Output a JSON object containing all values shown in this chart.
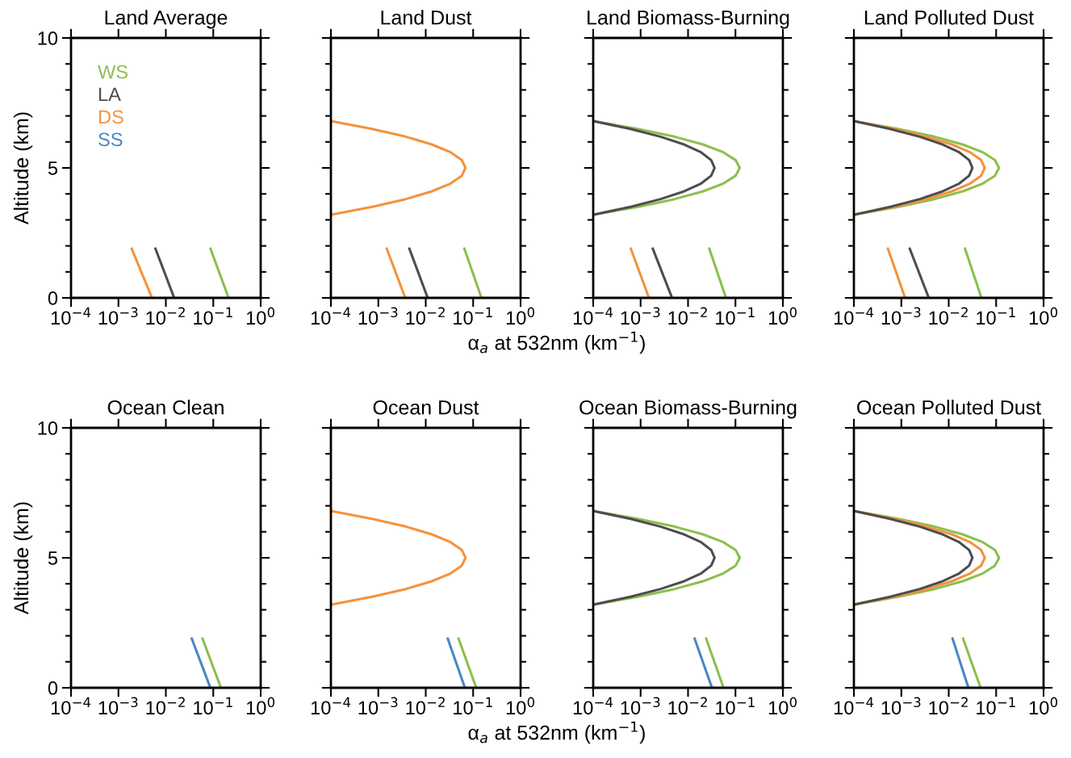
{
  "chart_data": [
    {
      "type": "line",
      "title": "Land Average",
      "ylabel": "Altitude (km)",
      "log": "x",
      "xlim": [
        0.0001,
        1
      ],
      "ylim": [
        0,
        10
      ],
      "legend": "top left",
      "tick_labels": true,
      "xticks": [
        {
          "value": 0.0001,
          "label": "10$^{−4}$"
        },
        {
          "value": 0.001,
          "label": "10$^{−3}$"
        },
        {
          "value": 0.01,
          "label": "10$^{−2}$"
        },
        {
          "value": 0.1,
          "label": "10$^{−1}$"
        },
        {
          "value": 1,
          "label": "10$^{0}$"
        }
      ],
      "yticks": [
        0,
        {
          "value": 1,
          "label": null
        },
        {
          "value": 2,
          "label": null
        },
        {
          "value": 3,
          "label": null
        },
        {
          "value": 4,
          "label": null
        },
        5,
        {
          "value": 6,
          "label": null
        },
        {
          "value": 7,
          "label": null
        },
        {
          "value": 8,
          "label": null
        },
        {
          "value": 9,
          "label": null
        },
        10
      ],
      "series": [
        {
          "name": "WS",
          "color": "#8cbf4f",
          "x": [
            0.21,
            0.087
          ],
          "values": [
            0,
            1.9
          ]
        },
        {
          "name": "LA",
          "color": "#4d4d4d",
          "x": [
            0.015,
            0.006
          ],
          "values": [
            0,
            1.9
          ]
        },
        {
          "name": "DS",
          "color": "#f4923d",
          "x": [
            0.0051,
            0.0019
          ],
          "values": [
            0,
            1.9
          ]
        },
        {
          "name": "SS",
          "color": "#4a86c8"
        }
      ]
    },
    {
      "type": "line",
      "title": "Land Dust",
      "xlabel": "α$_{a}$ at 532nm (km$^{−1}$)",
      "log": "x",
      "xlim": [
        0.0001,
        1
      ],
      "ylim": [
        0,
        10
      ],
      "tick_labels": "x",
      "xticks": [
        {
          "value": 0.0001,
          "label": "10$^{−4}$"
        },
        {
          "value": 0.001,
          "label": "10$^{−3}$"
        },
        {
          "value": 0.01,
          "label": "10$^{−2}$"
        },
        {
          "value": 0.1,
          "label": "10$^{−1}$"
        },
        {
          "value": 1,
          "label": "10$^{0}$"
        }
      ],
      "yticks": [
        0,
        {
          "value": 1,
          "label": null
        },
        {
          "value": 2,
          "label": null
        },
        {
          "value": 3,
          "label": null
        },
        {
          "value": 4,
          "label": null
        },
        5,
        {
          "value": 6,
          "label": null
        },
        {
          "value": 7,
          "label": null
        },
        {
          "value": 8,
          "label": null
        },
        {
          "value": 9,
          "label": null
        },
        10
      ],
      "series": [
        {
          "color": "#8cbf4f",
          "x": [
            0.15,
            0.065
          ],
          "values": [
            0,
            1.9
          ]
        },
        {
          "color": "#4d4d4d",
          "x": [
            0.011,
            0.0045
          ],
          "values": [
            0,
            1.9
          ]
        },
        {
          "color": "#f4923d",
          "x": [
            0.0037,
            0.0015
          ],
          "values": [
            0,
            1.9
          ]
        },
        {
          "color": "#f4923d",
          "x": [
            0.0001,
            0.00074,
            0.0038,
            0.0135,
            0.0335,
            0.0577,
            0.069,
            0.0577,
            0.0335,
            0.0135,
            0.0038,
            0.00074,
            0.0001
          ],
          "values": [
            3.2,
            3.5,
            3.8,
            4.1,
            4.4,
            4.7,
            5,
            5.3,
            5.6,
            5.9,
            6.2,
            6.5,
            6.8
          ]
        }
      ]
    },
    {
      "type": "line",
      "title": "Land Biomass-Burning",
      "log": "x",
      "xlim": [
        0.0001,
        1
      ],
      "ylim": [
        0,
        10
      ],
      "tick_labels": "x",
      "xticks": [
        {
          "value": 0.0001,
          "label": "10$^{−4}$"
        },
        {
          "value": 0.001,
          "label": "10$^{−3}$"
        },
        {
          "value": 0.01,
          "label": "10$^{−2}$"
        },
        {
          "value": 0.1,
          "label": "10$^{−1}$"
        },
        {
          "value": 1,
          "label": "10$^{0}$"
        }
      ],
      "yticks": [
        0,
        {
          "value": 1,
          "label": null
        },
        {
          "value": 2,
          "label": null
        },
        {
          "value": 3,
          "label": null
        },
        {
          "value": 4,
          "label": null
        },
        5,
        {
          "value": 6,
          "label": null
        },
        {
          "value": 7,
          "label": null
        },
        {
          "value": 8,
          "label": null
        },
        {
          "value": 9,
          "label": null
        },
        10
      ],
      "series": [
        {
          "color": "#8cbf4f",
          "x": [
            0.063,
            0.028
          ],
          "values": [
            0,
            1.9
          ]
        },
        {
          "color": "#4d4d4d",
          "x": [
            0.0046,
            0.0018
          ],
          "values": [
            0,
            1.9
          ]
        },
        {
          "color": "#f4923d",
          "x": [
            0.0015,
            0.00062
          ],
          "values": [
            0,
            1.9
          ]
        },
        {
          "color": "#8cbf4f",
          "x": [
            0.0001,
            0.00088,
            0.0052,
            0.0208,
            0.0558,
            0.101,
            0.123,
            0.101,
            0.0558,
            0.0208,
            0.0052,
            0.00088,
            0.0001
          ],
          "values": [
            3.2,
            3.5,
            3.8,
            4.1,
            4.4,
            4.7,
            5,
            5.3,
            5.6,
            5.9,
            6.2,
            6.5,
            6.8
          ]
        },
        {
          "color": "#4d4d4d",
          "x": [
            0.0001,
            0.00061,
            0.00264,
            0.0083,
            0.0189,
            0.0308,
            0.0363,
            0.0308,
            0.0189,
            0.0083,
            0.00264,
            0.00061,
            0.0001
          ],
          "values": [
            3.2,
            3.5,
            3.8,
            4.1,
            4.4,
            4.7,
            5,
            5.3,
            5.6,
            5.9,
            6.2,
            6.5,
            6.8
          ]
        }
      ]
    },
    {
      "type": "line",
      "title": "Land Polluted Dust",
      "log": "x",
      "xlim": [
        0.0001,
        1
      ],
      "ylim": [
        0,
        10
      ],
      "tick_labels": "x",
      "xticks": [
        {
          "value": 0.0001,
          "label": "10$^{−4}$"
        },
        {
          "value": 0.001,
          "label": "10$^{−3}$"
        },
        {
          "value": 0.01,
          "label": "10$^{−2}$"
        },
        {
          "value": 0.1,
          "label": "10$^{−1}$"
        },
        {
          "value": 1,
          "label": "10$^{0}$"
        }
      ],
      "yticks": [
        0,
        {
          "value": 1,
          "label": null
        },
        {
          "value": 2,
          "label": null
        },
        {
          "value": 3,
          "label": null
        },
        {
          "value": 4,
          "label": null
        },
        5,
        {
          "value": 6,
          "label": null
        },
        {
          "value": 7,
          "label": null
        },
        {
          "value": 8,
          "label": null
        },
        {
          "value": 9,
          "label": null
        },
        10
      ],
      "series": [
        {
          "color": "#8cbf4f",
          "x": [
            0.049,
            0.022
          ],
          "values": [
            0,
            1.9
          ]
        },
        {
          "color": "#4d4d4d",
          "x": [
            0.0038,
            0.0015
          ],
          "values": [
            0,
            1.9
          ]
        },
        {
          "color": "#f4923d",
          "x": [
            0.0012,
            0.00052
          ],
          "values": [
            0,
            1.9
          ]
        },
        {
          "color": "#8cbf4f",
          "x": [
            0.0001,
            0.00086,
            0.00502,
            0.0197,
            0.0525,
            0.0944,
            0.115,
            0.0944,
            0.0525,
            0.0197,
            0.00502,
            0.00086,
            0.0001
          ],
          "values": [
            3.2,
            3.5,
            3.8,
            4.1,
            4.4,
            4.7,
            5,
            5.3,
            5.6,
            5.9,
            6.2,
            6.5,
            6.8
          ]
        },
        {
          "color": "#f4923d",
          "x": [
            0.0001,
            0.0007,
            0.00342,
            0.0117,
            0.0284,
            0.0482,
            0.0575,
            0.0482,
            0.0284,
            0.0117,
            0.00342,
            0.0007,
            0.0001
          ],
          "values": [
            3.2,
            3.5,
            3.8,
            4.1,
            4.4,
            4.7,
            5,
            5.3,
            5.6,
            5.9,
            6.2,
            6.5,
            6.8
          ]
        },
        {
          "color": "#4d4d4d",
          "x": [
            0.0001,
            0.00058,
            0.00245,
            0.0075,
            0.0167,
            0.027,
            0.0316,
            0.027,
            0.0167,
            0.0075,
            0.00245,
            0.00058,
            0.0001
          ],
          "values": [
            3.2,
            3.5,
            3.8,
            4.1,
            4.4,
            4.7,
            5,
            5.3,
            5.6,
            5.9,
            6.2,
            6.5,
            6.8
          ]
        }
      ]
    },
    {
      "type": "line",
      "title": "Ocean Clean",
      "ylabel": "Altitude (km)",
      "log": "x",
      "xlim": [
        0.0001,
        1
      ],
      "ylim": [
        0,
        10
      ],
      "tick_labels": true,
      "xticks": [
        {
          "value": 0.0001,
          "label": "10$^{−4}$"
        },
        {
          "value": 0.001,
          "label": "10$^{−3}$"
        },
        {
          "value": 0.01,
          "label": "10$^{−2}$"
        },
        {
          "value": 0.1,
          "label": "10$^{−1}$"
        },
        {
          "value": 1,
          "label": "10$^{0}$"
        }
      ],
      "yticks": [
        0,
        {
          "value": 1,
          "label": null
        },
        {
          "value": 2,
          "label": null
        },
        {
          "value": 3,
          "label": null
        },
        {
          "value": 4,
          "label": null
        },
        5,
        {
          "value": 6,
          "label": null
        },
        {
          "value": 7,
          "label": null
        },
        {
          "value": 8,
          "label": null
        },
        {
          "value": 9,
          "label": null
        },
        10
      ],
      "series": [
        {
          "color": "#8cbf4f",
          "x": [
            0.145,
            0.059
          ],
          "values": [
            0,
            1.9
          ]
        },
        {
          "color": "#4a86c8",
          "x": [
            0.087,
            0.035
          ],
          "values": [
            0,
            1.9
          ]
        }
      ]
    },
    {
      "type": "line",
      "title": "Ocean Dust",
      "xlabel": "α$_{a}$ at 532nm (km$^{−1}$)",
      "log": "x",
      "xlim": [
        0.0001,
        1
      ],
      "ylim": [
        0,
        10
      ],
      "tick_labels": "x",
      "xticks": [
        {
          "value": 0.0001,
          "label": "10$^{−4}$"
        },
        {
          "value": 0.001,
          "label": "10$^{−3}$"
        },
        {
          "value": 0.01,
          "label": "10$^{−2}$"
        },
        {
          "value": 0.1,
          "label": "10$^{−1}$"
        },
        {
          "value": 1,
          "label": "10$^{0}$"
        }
      ],
      "yticks": [
        0,
        {
          "value": 1,
          "label": null
        },
        {
          "value": 2,
          "label": null
        },
        {
          "value": 3,
          "label": null
        },
        {
          "value": 4,
          "label": null
        },
        5,
        {
          "value": 6,
          "label": null
        },
        {
          "value": 7,
          "label": null
        },
        {
          "value": 8,
          "label": null
        },
        {
          "value": 9,
          "label": null
        },
        10
      ],
      "series": [
        {
          "color": "#8cbf4f",
          "x": [
            0.116,
            0.049
          ],
          "values": [
            0,
            1.9
          ]
        },
        {
          "color": "#4a86c8",
          "x": [
            0.067,
            0.029
          ],
          "values": [
            0,
            1.9
          ]
        },
        {
          "color": "#f4923d",
          "x": [
            0.0001,
            0.00074,
            0.0038,
            0.0135,
            0.0335,
            0.0577,
            0.069,
            0.0577,
            0.0335,
            0.0135,
            0.0038,
            0.00074,
            0.0001
          ],
          "values": [
            3.2,
            3.5,
            3.8,
            4.1,
            4.4,
            4.7,
            5,
            5.3,
            5.6,
            5.9,
            6.2,
            6.5,
            6.8
          ]
        }
      ]
    },
    {
      "type": "line",
      "title": "Ocean Biomass-Burning",
      "log": "x",
      "xlim": [
        0.0001,
        1
      ],
      "ylim": [
        0,
        10
      ],
      "tick_labels": "x",
      "xticks": [
        {
          "value": 0.0001,
          "label": "10$^{−4}$"
        },
        {
          "value": 0.001,
          "label": "10$^{−3}$"
        },
        {
          "value": 0.01,
          "label": "10$^{−2}$"
        },
        {
          "value": 0.1,
          "label": "10$^{−1}$"
        },
        {
          "value": 1,
          "label": "10$^{0}$"
        }
      ],
      "yticks": [
        0,
        {
          "value": 1,
          "label": null
        },
        {
          "value": 2,
          "label": null
        },
        {
          "value": 3,
          "label": null
        },
        {
          "value": 4,
          "label": null
        },
        5,
        {
          "value": 6,
          "label": null
        },
        {
          "value": 7,
          "label": null
        },
        {
          "value": 8,
          "label": null
        },
        {
          "value": 9,
          "label": null
        },
        10
      ],
      "series": [
        {
          "color": "#8cbf4f",
          "x": [
            0.056,
            0.024
          ],
          "values": [
            0,
            1.9
          ]
        },
        {
          "color": "#4a86c8",
          "x": [
            0.032,
            0.0137
          ],
          "values": [
            0,
            1.9
          ]
        },
        {
          "color": "#8cbf4f",
          "x": [
            0.0001,
            0.00088,
            0.0052,
            0.0208,
            0.0558,
            0.101,
            0.123,
            0.101,
            0.0558,
            0.0208,
            0.0052,
            0.00088,
            0.0001
          ],
          "values": [
            3.2,
            3.5,
            3.8,
            4.1,
            4.4,
            4.7,
            5,
            5.3,
            5.6,
            5.9,
            6.2,
            6.5,
            6.8
          ]
        },
        {
          "color": "#4d4d4d",
          "x": [
            0.0001,
            0.00061,
            0.00264,
            0.0083,
            0.0189,
            0.0308,
            0.0363,
            0.0308,
            0.0189,
            0.0083,
            0.00264,
            0.00061,
            0.0001
          ],
          "values": [
            3.2,
            3.5,
            3.8,
            4.1,
            4.4,
            4.7,
            5,
            5.3,
            5.6,
            5.9,
            6.2,
            6.5,
            6.8
          ]
        }
      ]
    },
    {
      "type": "line",
      "title": "Ocean Polluted Dust",
      "log": "x",
      "xlim": [
        0.0001,
        1
      ],
      "ylim": [
        0,
        10
      ],
      "tick_labels": "x",
      "xticks": [
        {
          "value": 0.0001,
          "label": "10$^{−4}$"
        },
        {
          "value": 0.001,
          "label": "10$^{−3}$"
        },
        {
          "value": 0.01,
          "label": "10$^{−2}$"
        },
        {
          "value": 0.1,
          "label": "10$^{−1}$"
        },
        {
          "value": 1,
          "label": "10$^{0}$"
        }
      ],
      "yticks": [
        0,
        {
          "value": 1,
          "label": null
        },
        {
          "value": 2,
          "label": null
        },
        {
          "value": 3,
          "label": null
        },
        {
          "value": 4,
          "label": null
        },
        5,
        {
          "value": 6,
          "label": null
        },
        {
          "value": 7,
          "label": null
        },
        {
          "value": 8,
          "label": null
        },
        {
          "value": 9,
          "label": null
        },
        10
      ],
      "series": [
        {
          "color": "#8cbf4f",
          "x": [
            0.047,
            0.02
          ],
          "values": [
            0,
            1.9
          ]
        },
        {
          "color": "#4a86c8",
          "x": [
            0.026,
            0.012
          ],
          "values": [
            0,
            1.9
          ]
        },
        {
          "color": "#8cbf4f",
          "x": [
            0.0001,
            0.00086,
            0.00502,
            0.0197,
            0.0525,
            0.0944,
            0.115,
            0.0944,
            0.0525,
            0.0197,
            0.00502,
            0.00086,
            0.0001
          ],
          "values": [
            3.2,
            3.5,
            3.8,
            4.1,
            4.4,
            4.7,
            5,
            5.3,
            5.6,
            5.9,
            6.2,
            6.5,
            6.8
          ]
        },
        {
          "color": "#f4923d",
          "x": [
            0.0001,
            0.0007,
            0.00342,
            0.0117,
            0.0284,
            0.0482,
            0.0575,
            0.0482,
            0.0284,
            0.0117,
            0.00342,
            0.0007,
            0.0001
          ],
          "values": [
            3.2,
            3.5,
            3.8,
            4.1,
            4.4,
            4.7,
            5,
            5.3,
            5.6,
            5.9,
            6.2,
            6.5,
            6.8
          ]
        },
        {
          "color": "#4d4d4d",
          "x": [
            0.0001,
            0.00058,
            0.00245,
            0.0075,
            0.0167,
            0.027,
            0.0316,
            0.027,
            0.0167,
            0.0075,
            0.00245,
            0.00058,
            0.0001
          ],
          "values": [
            3.2,
            3.5,
            3.8,
            4.1,
            4.4,
            4.7,
            5,
            5.3,
            5.6,
            5.9,
            6.2,
            6.5,
            6.8
          ]
        }
      ]
    }
  ]
}
